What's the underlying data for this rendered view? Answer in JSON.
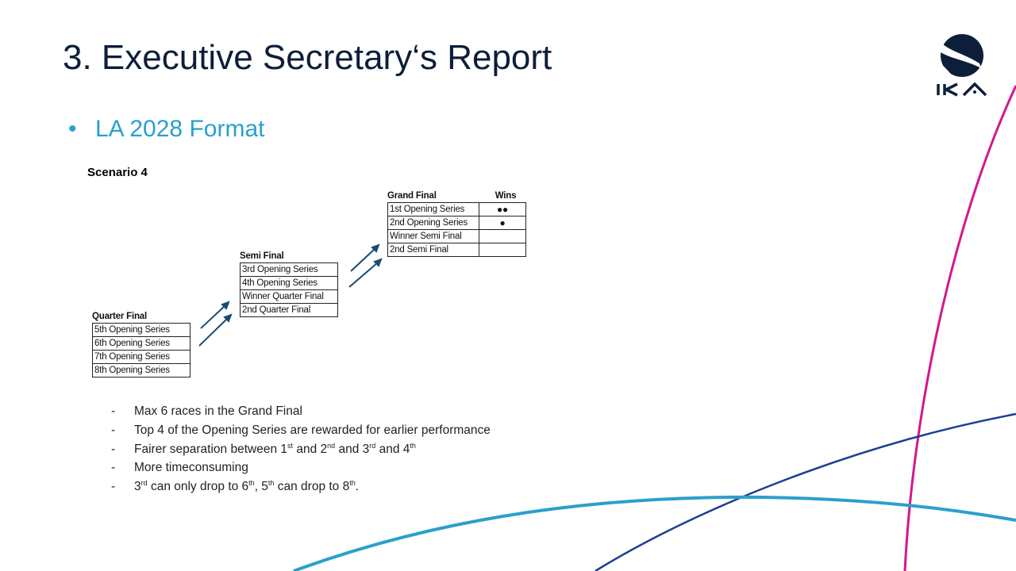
{
  "slide": {
    "title": "3. Executive Secretary‘s Report",
    "bullet": "LA 2028 Format",
    "scenario": "Scenario 4",
    "logo_text": "IKA",
    "colors": {
      "title": "#0d1e3a",
      "accent": "#2aa0cc",
      "magenta": "#d4178f",
      "dark_blue": "#1c3f94",
      "arrow": "#1a4a70"
    }
  },
  "quarter_final": {
    "header": "Quarter Final",
    "rows": [
      "5th Opening Series",
      "6th Opening Series",
      "7th Opening Series",
      "8th Opening Series"
    ]
  },
  "semi_final": {
    "header": "Semi Final",
    "rows": [
      "3rd Opening Series",
      "4th Opening Series",
      "Winner Quarter Final",
      "2nd Quarter Final"
    ]
  },
  "grand_final": {
    "header": "Grand Final",
    "wins_header": "Wins",
    "rows": [
      {
        "label": "1st Opening Series",
        "wins": "●●"
      },
      {
        "label": "2nd Opening Series",
        "wins": "●"
      },
      {
        "label": "Winner Semi Final",
        "wins": ""
      },
      {
        "label": "2nd Semi Final",
        "wins": ""
      }
    ]
  },
  "notes": [
    [
      {
        "t": "Max 6 races in the Grand Final"
      }
    ],
    [
      {
        "t": "Top 4 of the Opening Series are rewarded for earlier performance"
      }
    ],
    [
      {
        "t": "Fairer separation between 1"
      },
      {
        "s": "st"
      },
      {
        "t": " and 2"
      },
      {
        "s": "nd"
      },
      {
        "t": " and 3"
      },
      {
        "s": "rd"
      },
      {
        "t": " and 4"
      },
      {
        "s": "th"
      }
    ],
    [
      {
        "t": "More timeconsuming"
      }
    ],
    [
      {
        "t": "3"
      },
      {
        "s": "rd"
      },
      {
        "t": " can only drop to 6"
      },
      {
        "s": "th"
      },
      {
        "t": ", 5"
      },
      {
        "s": "th"
      },
      {
        "t": " can drop to 8"
      },
      {
        "s": "th"
      },
      {
        "t": "."
      }
    ]
  ],
  "note_marker": "-"
}
